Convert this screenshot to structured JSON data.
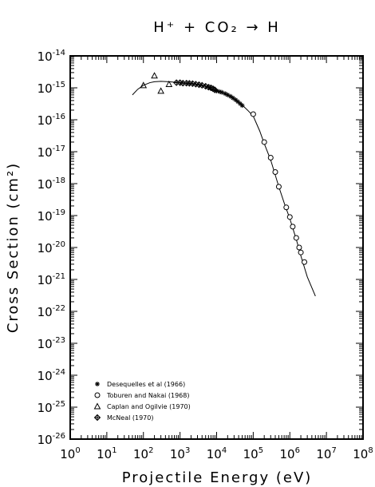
{
  "chart_data": {
    "type": "scatter",
    "title": "H⁺ + CO₂ → H",
    "xlabel": "Projectile Energy (eV)",
    "ylabel": "Cross Section (cm²)",
    "xscale": "log",
    "yscale": "log",
    "xlim": [
      1,
      100000000
    ],
    "ylim": [
      1e-26,
      1e-14
    ],
    "x_ticks": [
      {
        "base": "10",
        "exp": "0",
        "value": 1
      },
      {
        "base": "10",
        "exp": "1",
        "value": 10
      },
      {
        "base": "10",
        "exp": "2",
        "value": 100
      },
      {
        "base": "10",
        "exp": "3",
        "value": 1000
      },
      {
        "base": "10",
        "exp": "4",
        "value": 10000
      },
      {
        "base": "10",
        "exp": "5",
        "value": 100000
      },
      {
        "base": "10",
        "exp": "6",
        "value": 1000000
      },
      {
        "base": "10",
        "exp": "7",
        "value": 10000000
      },
      {
        "base": "10",
        "exp": "8",
        "value": 100000000
      }
    ],
    "y_ticks": [
      {
        "base": "10",
        "exp": "-26",
        "value": 1e-26
      },
      {
        "base": "10",
        "exp": "-25",
        "value": 1e-25
      },
      {
        "base": "10",
        "exp": "-24",
        "value": 1e-24
      },
      {
        "base": "10",
        "exp": "-23",
        "value": 1e-23
      },
      {
        "base": "10",
        "exp": "-22",
        "value": 1e-22
      },
      {
        "base": "10",
        "exp": "-21",
        "value": 1e-21
      },
      {
        "base": "10",
        "exp": "-20",
        "value": 1e-20
      },
      {
        "base": "10",
        "exp": "-19",
        "value": 1e-19
      },
      {
        "base": "10",
        "exp": "-18",
        "value": 1e-18
      },
      {
        "base": "10",
        "exp": "-17",
        "value": 1e-17
      },
      {
        "base": "10",
        "exp": "-16",
        "value": 1e-16
      },
      {
        "base": "10",
        "exp": "-15",
        "value": 1e-15
      },
      {
        "base": "10",
        "exp": "-14",
        "value": 1e-14
      }
    ],
    "legend_position": "bottom-left",
    "grid": false,
    "series": [
      {
        "name": "Desequelles et al (1966)",
        "marker": "asterisk",
        "points": [
          [
            10000,
            8e-16
          ],
          [
            12000,
            7.6e-16
          ],
          [
            14000,
            7.2e-16
          ],
          [
            17000,
            6.6e-16
          ],
          [
            20000,
            6e-16
          ],
          [
            24000,
            5.4e-16
          ],
          [
            28000,
            4.8e-16
          ],
          [
            33000,
            4.2e-16
          ],
          [
            38000,
            3.7e-16
          ],
          [
            44000,
            3.2e-16
          ],
          [
            50000,
            2.8e-16
          ]
        ]
      },
      {
        "name": "Toburen and Nakai (1968)",
        "marker": "circle",
        "points": [
          [
            100000,
            1.5e-16
          ],
          [
            200000,
            2e-17
          ],
          [
            300000,
            6.5e-18
          ],
          [
            400000,
            2.3e-18
          ],
          [
            500000,
            8e-19
          ],
          [
            800000,
            1.8e-19
          ],
          [
            1000000,
            9e-20
          ],
          [
            1200000,
            4.5e-20
          ],
          [
            1500000,
            2e-20
          ],
          [
            1800000,
            1e-20
          ],
          [
            2000000,
            7e-21
          ],
          [
            2500000,
            3.5e-21
          ]
        ]
      },
      {
        "name": "Caplan and Ogilvie (1970)",
        "marker": "triangle",
        "points": [
          [
            100,
            1.2e-15
          ],
          [
            200,
            2.4e-15
          ],
          [
            300,
            8e-16
          ],
          [
            500,
            1.3e-15
          ]
        ]
      },
      {
        "name": "McNeal (1970)",
        "marker": "diamond-cross",
        "points": [
          [
            800,
            1.45e-15
          ],
          [
            1000,
            1.45e-15
          ],
          [
            1200,
            1.4e-15
          ],
          [
            1500,
            1.4e-15
          ],
          [
            1800,
            1.38e-15
          ],
          [
            2200,
            1.35e-15
          ],
          [
            2700,
            1.3e-15
          ],
          [
            3300,
            1.25e-15
          ],
          [
            4000,
            1.2e-15
          ],
          [
            5000,
            1.12e-15
          ],
          [
            6000,
            1.05e-15
          ],
          [
            7000,
            1e-15
          ],
          [
            8000,
            9.3e-16
          ],
          [
            9000,
            8.6e-16
          ]
        ]
      }
    ],
    "fit_curve": {
      "points": [
        [
          50,
          6e-16
        ],
        [
          70,
          9e-16
        ],
        [
          100,
          1.2e-15
        ],
        [
          150,
          1.45e-15
        ],
        [
          200,
          1.55e-15
        ],
        [
          300,
          1.6e-15
        ],
        [
          500,
          1.55e-15
        ],
        [
          1000,
          1.45e-15
        ],
        [
          2000,
          1.33e-15
        ],
        [
          3000,
          1.25e-15
        ],
        [
          5000,
          1.1e-15
        ],
        [
          10000,
          8e-16
        ],
        [
          20000,
          5.8e-16
        ],
        [
          30000,
          4.5e-16
        ],
        [
          50000,
          2.9e-16
        ],
        [
          70000,
          2e-16
        ],
        [
          100000,
          1.3e-16
        ],
        [
          150000,
          4.5e-17
        ],
        [
          200000,
          1.8e-17
        ],
        [
          300000,
          5.5e-18
        ],
        [
          500000,
          8e-19
        ],
        [
          700000,
          2.5e-19
        ],
        [
          1000000,
          8e-20
        ],
        [
          1500000,
          1.8e-20
        ],
        [
          2000000,
          5.5e-21
        ],
        [
          3000000,
          1.2e-21
        ],
        [
          5000000,
          3e-22
        ]
      ]
    }
  }
}
